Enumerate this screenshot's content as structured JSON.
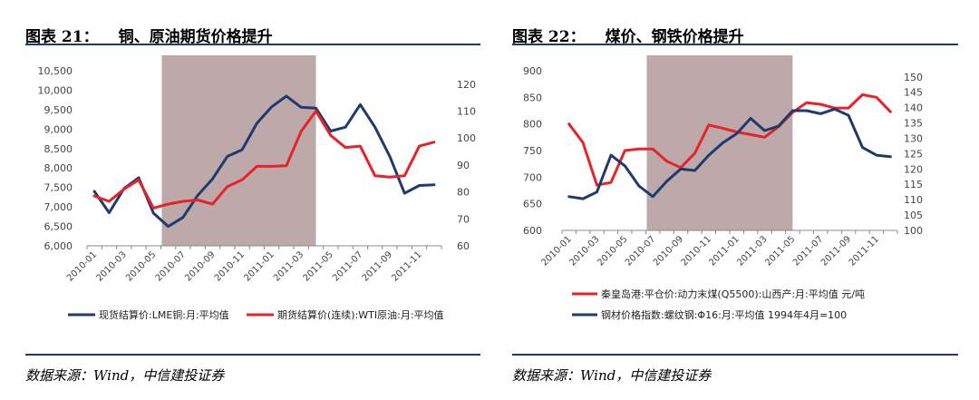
{
  "figures": [
    {
      "number": "图表 21：",
      "title": "铜、原油期货价格提升",
      "source": "数据来源：Wind，中信建投证券"
    },
    {
      "number": "图表 22：",
      "title": "煤价、钢铁价格提升",
      "source": "数据来源：Wind，中信建投证券"
    }
  ],
  "colors": {
    "red": "#e8222a",
    "navy": "#1f3b6e",
    "shade": "#bda9a9"
  },
  "chart_data": [
    {
      "type": "line",
      "x": [
        "2010-01",
        "2010-02",
        "2010-03",
        "2010-04",
        "2010-05",
        "2010-06",
        "2010-07",
        "2010-08",
        "2010-09",
        "2010-10",
        "2010-11",
        "2010-12",
        "2011-01",
        "2011-02",
        "2011-03",
        "2011-04",
        "2011-05",
        "2011-06",
        "2011-07",
        "2011-08",
        "2011-09",
        "2011-10",
        "2011-11",
        "2011-12"
      ],
      "x_tick_labels": [
        "2010-01",
        "2010-03",
        "2010-05",
        "2010-07",
        "2010-09",
        "2010-11",
        "2011-01",
        "2011-03",
        "2011-05",
        "2011-07",
        "2011-09",
        "2011-11"
      ],
      "series": [
        {
          "name": "现货结算价:LME铜:月:平均值",
          "axis": "left",
          "color": "#1f3b6e",
          "values": [
            7400,
            6850,
            7470,
            7750,
            6840,
            6500,
            6730,
            7300,
            7720,
            8300,
            8470,
            9150,
            9570,
            9850,
            9560,
            9540,
            8950,
            9050,
            9630,
            9050,
            8300,
            7350,
            7550,
            7570
          ]
        },
        {
          "name": "期货结算价(连续):WTI原油:月:平均值",
          "axis": "right",
          "color": "#e8222a",
          "values": [
            78.5,
            76.5,
            81,
            84.5,
            74,
            75.5,
            76.5,
            77,
            75.5,
            82,
            84.5,
            89.5,
            89.5,
            89.7,
            102.5,
            110,
            101,
            96.5,
            97,
            86,
            85.5,
            86,
            97,
            98.5
          ]
        }
      ],
      "shaded_range": [
        "2010-06",
        "2011-04"
      ],
      "ylim_left": [
        6000,
        10500
      ],
      "yticks_left": [
        "6,000",
        "6,500",
        "7,000",
        "7,500",
        "8,000",
        "8,500",
        "9,000",
        "9,500",
        "10,000",
        "10,500"
      ],
      "ylim_right": [
        60,
        125
      ],
      "yticks_right": [
        "60",
        "70",
        "80",
        "90",
        "100",
        "110",
        "120"
      ],
      "legend_position": "bottom"
    },
    {
      "type": "line",
      "x": [
        "2010-01",
        "2010-02",
        "2010-03",
        "2010-04",
        "2010-05",
        "2010-06",
        "2010-07",
        "2010-08",
        "2010-09",
        "2010-10",
        "2010-11",
        "2010-12",
        "2011-01",
        "2011-02",
        "2011-03",
        "2011-04",
        "2011-05",
        "2011-06",
        "2011-07",
        "2011-08",
        "2011-09",
        "2011-10",
        "2011-11",
        "2011-12"
      ],
      "x_tick_labels": [
        "2010-01",
        "2010-03",
        "2010-05",
        "2010-07",
        "2010-09",
        "2010-11",
        "2011-01",
        "2011-03",
        "2011-05",
        "2011-07",
        "2011-09",
        "2011-11"
      ],
      "series": [
        {
          "name": "秦皇岛港:平仓价:动力末煤(Q5500):山西产:月:平均值 元/吨",
          "axis": "left",
          "color": "#e8222a",
          "values": [
            800,
            765,
            685,
            690,
            750,
            753,
            753,
            730,
            718,
            745,
            798,
            792,
            785,
            780,
            775,
            795,
            822,
            840,
            837,
            830,
            830,
            855,
            850,
            823
          ]
        },
        {
          "name": "钢材价格指数:螺纹钢:Φ16:月:平均值 1994年4月=100",
          "axis": "right",
          "color": "#1f3b6e",
          "values": [
            111,
            110.3,
            112.5,
            124.5,
            121,
            114.5,
            111,
            116,
            120,
            119.5,
            124.5,
            128.5,
            131.5,
            136.5,
            132.5,
            134,
            139,
            139,
            138,
            139.5,
            137.5,
            127,
            124.5,
            124
          ]
        }
      ],
      "shaded_range": [
        "2010-07",
        "2011-05"
      ],
      "ylim_left": [
        600,
        900
      ],
      "yticks_left": [
        "600",
        "650",
        "700",
        "750",
        "800",
        "850",
        "900"
      ],
      "ylim_right": [
        100,
        152
      ],
      "yticks_right": [
        "100",
        "105",
        "110",
        "115",
        "120",
        "125",
        "130",
        "135",
        "140",
        "145",
        "150"
      ],
      "legend_position": "bottom"
    }
  ]
}
